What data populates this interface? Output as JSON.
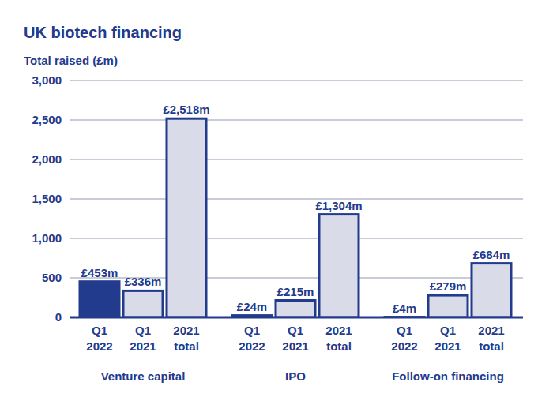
{
  "chart_data": {
    "type": "bar",
    "title": "UK biotech financing",
    "ylabel": "Total raised (£m)",
    "categories": [
      "Venture capital",
      "IPO",
      "Follow-on financing"
    ],
    "series": [
      {
        "name": "Q1 2022",
        "color": "#233b8d",
        "values": [
          453,
          24,
          4
        ],
        "value_labels": [
          "£453m",
          "£24m",
          "£4m"
        ]
      },
      {
        "name": "Q1 2021",
        "color": "#d9dbe9",
        "values": [
          336,
          215,
          279
        ],
        "value_labels": [
          "£336m",
          "£215m",
          "£279m"
        ]
      },
      {
        "name": "2021 total",
        "color": "#d9dbe9",
        "values": [
          2518,
          1304,
          684
        ],
        "value_labels": [
          "£2,518m",
          "£1,304m",
          "£684m"
        ]
      }
    ],
    "ylim": [
      0,
      3000
    ],
    "yticks": [
      0,
      500,
      {
        "value": 1000,
        "label": "1,000"
      },
      {
        "value": 1500,
        "label": "1,500"
      },
      {
        "value": 2000,
        "label": "2,000"
      },
      {
        "value": 2500,
        "label": "2,500"
      },
      {
        "value": 3000,
        "label": "3,000"
      }
    ],
    "grid": true,
    "data_labels": true
  }
}
